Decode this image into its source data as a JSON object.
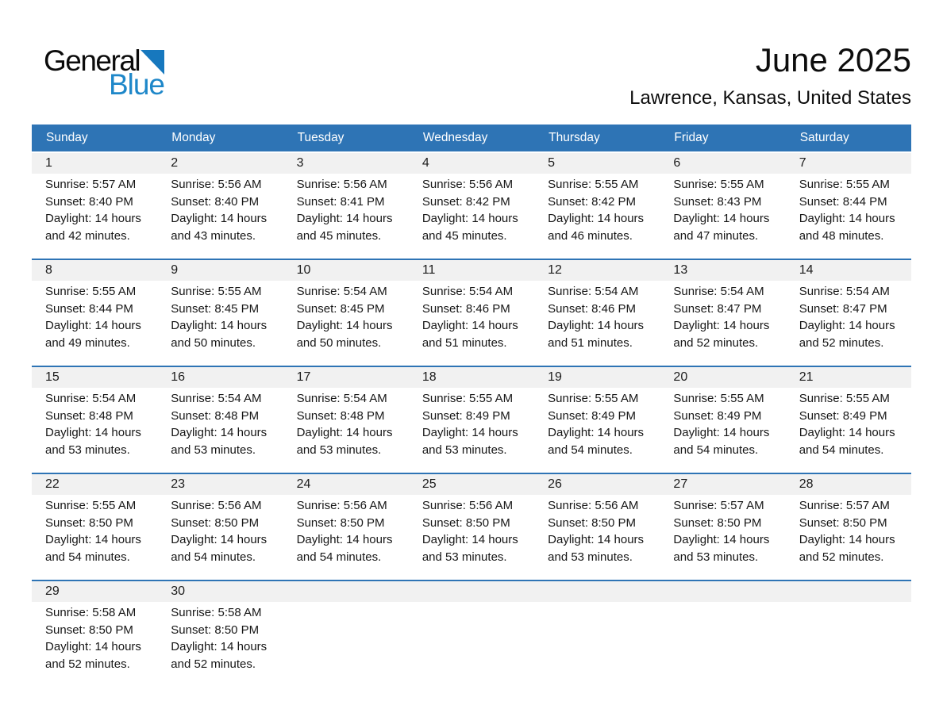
{
  "logo": {
    "general": "General",
    "blue": "Blue"
  },
  "header": {
    "title": "June 2025",
    "subtitle": "Lawrence, Kansas, United States"
  },
  "colors": {
    "header_bg": "#2E74B5",
    "week_divider": "#2E74B5",
    "number_band_bg": "#F1F1F1",
    "logo_blue": "#1E87C9",
    "logo_triangle_blue": "#1778BE"
  },
  "weekday_headers": [
    "Sunday",
    "Monday",
    "Tuesday",
    "Wednesday",
    "Thursday",
    "Friday",
    "Saturday"
  ],
  "weeks": [
    {
      "days": [
        {
          "number": "1",
          "sunrise": "Sunrise: 5:57 AM",
          "sunset": "Sunset: 8:40 PM",
          "daylight1": "Daylight: 14 hours",
          "daylight2": "and 42 minutes."
        },
        {
          "number": "2",
          "sunrise": "Sunrise: 5:56 AM",
          "sunset": "Sunset: 8:40 PM",
          "daylight1": "Daylight: 14 hours",
          "daylight2": "and 43 minutes."
        },
        {
          "number": "3",
          "sunrise": "Sunrise: 5:56 AM",
          "sunset": "Sunset: 8:41 PM",
          "daylight1": "Daylight: 14 hours",
          "daylight2": "and 45 minutes."
        },
        {
          "number": "4",
          "sunrise": "Sunrise: 5:56 AM",
          "sunset": "Sunset: 8:42 PM",
          "daylight1": "Daylight: 14 hours",
          "daylight2": "and 45 minutes."
        },
        {
          "number": "5",
          "sunrise": "Sunrise: 5:55 AM",
          "sunset": "Sunset: 8:42 PM",
          "daylight1": "Daylight: 14 hours",
          "daylight2": "and 46 minutes."
        },
        {
          "number": "6",
          "sunrise": "Sunrise: 5:55 AM",
          "sunset": "Sunset: 8:43 PM",
          "daylight1": "Daylight: 14 hours",
          "daylight2": "and 47 minutes."
        },
        {
          "number": "7",
          "sunrise": "Sunrise: 5:55 AM",
          "sunset": "Sunset: 8:44 PM",
          "daylight1": "Daylight: 14 hours",
          "daylight2": "and 48 minutes."
        }
      ]
    },
    {
      "days": [
        {
          "number": "8",
          "sunrise": "Sunrise: 5:55 AM",
          "sunset": "Sunset: 8:44 PM",
          "daylight1": "Daylight: 14 hours",
          "daylight2": "and 49 minutes."
        },
        {
          "number": "9",
          "sunrise": "Sunrise: 5:55 AM",
          "sunset": "Sunset: 8:45 PM",
          "daylight1": "Daylight: 14 hours",
          "daylight2": "and 50 minutes."
        },
        {
          "number": "10",
          "sunrise": "Sunrise: 5:54 AM",
          "sunset": "Sunset: 8:45 PM",
          "daylight1": "Daylight: 14 hours",
          "daylight2": "and 50 minutes."
        },
        {
          "number": "11",
          "sunrise": "Sunrise: 5:54 AM",
          "sunset": "Sunset: 8:46 PM",
          "daylight1": "Daylight: 14 hours",
          "daylight2": "and 51 minutes."
        },
        {
          "number": "12",
          "sunrise": "Sunrise: 5:54 AM",
          "sunset": "Sunset: 8:46 PM",
          "daylight1": "Daylight: 14 hours",
          "daylight2": "and 51 minutes."
        },
        {
          "number": "13",
          "sunrise": "Sunrise: 5:54 AM",
          "sunset": "Sunset: 8:47 PM",
          "daylight1": "Daylight: 14 hours",
          "daylight2": "and 52 minutes."
        },
        {
          "number": "14",
          "sunrise": "Sunrise: 5:54 AM",
          "sunset": "Sunset: 8:47 PM",
          "daylight1": "Daylight: 14 hours",
          "daylight2": "and 52 minutes."
        }
      ]
    },
    {
      "days": [
        {
          "number": "15",
          "sunrise": "Sunrise: 5:54 AM",
          "sunset": "Sunset: 8:48 PM",
          "daylight1": "Daylight: 14 hours",
          "daylight2": "and 53 minutes."
        },
        {
          "number": "16",
          "sunrise": "Sunrise: 5:54 AM",
          "sunset": "Sunset: 8:48 PM",
          "daylight1": "Daylight: 14 hours",
          "daylight2": "and 53 minutes."
        },
        {
          "number": "17",
          "sunrise": "Sunrise: 5:54 AM",
          "sunset": "Sunset: 8:48 PM",
          "daylight1": "Daylight: 14 hours",
          "daylight2": "and 53 minutes."
        },
        {
          "number": "18",
          "sunrise": "Sunrise: 5:55 AM",
          "sunset": "Sunset: 8:49 PM",
          "daylight1": "Daylight: 14 hours",
          "daylight2": "and 53 minutes."
        },
        {
          "number": "19",
          "sunrise": "Sunrise: 5:55 AM",
          "sunset": "Sunset: 8:49 PM",
          "daylight1": "Daylight: 14 hours",
          "daylight2": "and 54 minutes."
        },
        {
          "number": "20",
          "sunrise": "Sunrise: 5:55 AM",
          "sunset": "Sunset: 8:49 PM",
          "daylight1": "Daylight: 14 hours",
          "daylight2": "and 54 minutes."
        },
        {
          "number": "21",
          "sunrise": "Sunrise: 5:55 AM",
          "sunset": "Sunset: 8:49 PM",
          "daylight1": "Daylight: 14 hours",
          "daylight2": "and 54 minutes."
        }
      ]
    },
    {
      "days": [
        {
          "number": "22",
          "sunrise": "Sunrise: 5:55 AM",
          "sunset": "Sunset: 8:50 PM",
          "daylight1": "Daylight: 14 hours",
          "daylight2": "and 54 minutes."
        },
        {
          "number": "23",
          "sunrise": "Sunrise: 5:56 AM",
          "sunset": "Sunset: 8:50 PM",
          "daylight1": "Daylight: 14 hours",
          "daylight2": "and 54 minutes."
        },
        {
          "number": "24",
          "sunrise": "Sunrise: 5:56 AM",
          "sunset": "Sunset: 8:50 PM",
          "daylight1": "Daylight: 14 hours",
          "daylight2": "and 54 minutes."
        },
        {
          "number": "25",
          "sunrise": "Sunrise: 5:56 AM",
          "sunset": "Sunset: 8:50 PM",
          "daylight1": "Daylight: 14 hours",
          "daylight2": "and 53 minutes."
        },
        {
          "number": "26",
          "sunrise": "Sunrise: 5:56 AM",
          "sunset": "Sunset: 8:50 PM",
          "daylight1": "Daylight: 14 hours",
          "daylight2": "and 53 minutes."
        },
        {
          "number": "27",
          "sunrise": "Sunrise: 5:57 AM",
          "sunset": "Sunset: 8:50 PM",
          "daylight1": "Daylight: 14 hours",
          "daylight2": "and 53 minutes."
        },
        {
          "number": "28",
          "sunrise": "Sunrise: 5:57 AM",
          "sunset": "Sunset: 8:50 PM",
          "daylight1": "Daylight: 14 hours",
          "daylight2": "and 52 minutes."
        }
      ]
    },
    {
      "days": [
        {
          "number": "29",
          "sunrise": "Sunrise: 5:58 AM",
          "sunset": "Sunset: 8:50 PM",
          "daylight1": "Daylight: 14 hours",
          "daylight2": "and 52 minutes."
        },
        {
          "number": "30",
          "sunrise": "Sunrise: 5:58 AM",
          "sunset": "Sunset: 8:50 PM",
          "daylight1": "Daylight: 14 hours",
          "daylight2": "and 52 minutes."
        },
        null,
        null,
        null,
        null,
        null
      ]
    }
  ]
}
